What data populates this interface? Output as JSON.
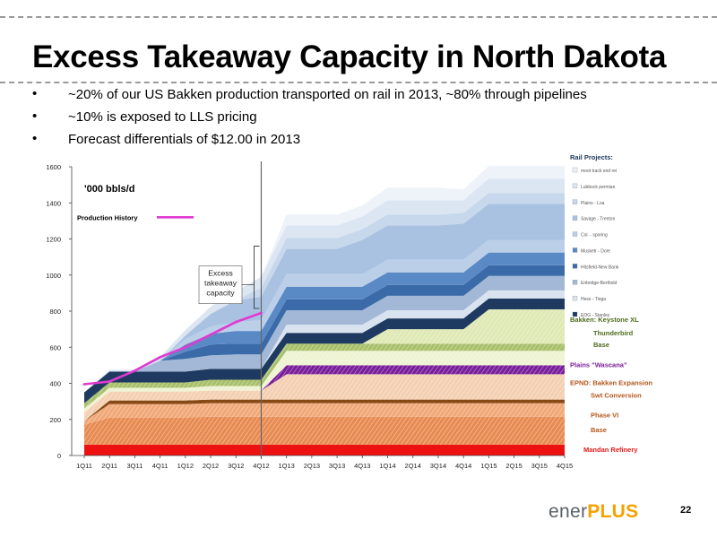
{
  "slide": {
    "title": "Excess Takeaway Capacity in North Dakota",
    "bullets": [
      "~20% of our US Bakken production transported on rail in 2013, ~80% through pipelines",
      "~10% is exposed to LLS pricing",
      "Forecast differentials of $12.00 in 2013"
    ],
    "page_number": "22",
    "logo": {
      "part1": "ener",
      "part2": "PLUS"
    }
  },
  "chart_data": {
    "type": "area",
    "title": "'000 bbls/d",
    "ylim": [
      0,
      1600
    ],
    "yticks": [
      0,
      200,
      400,
      600,
      800,
      1000,
      1200,
      1400,
      1600
    ],
    "categories": [
      "1Q11",
      "2Q11",
      "3Q11",
      "4Q11",
      "1Q12",
      "2Q12",
      "3Q12",
      "4Q12",
      "1Q13",
      "2Q13",
      "3Q13",
      "4Q13",
      "1Q14",
      "2Q14",
      "3Q14",
      "4Q14",
      "1Q15",
      "2Q15",
      "3Q15",
      "4Q15"
    ],
    "history_divider_after": "4Q12",
    "line_series": {
      "name": "Production History",
      "color": "#e03ad1",
      "values": [
        395,
        410,
        470,
        545,
        600,
        670,
        740,
        790
      ]
    },
    "annotation": {
      "lines": [
        "Excess",
        "takeaway",
        "capacity"
      ]
    },
    "rail_header": "Rail Projects:",
    "rail_legend": [
      {
        "name": "moot track end rei",
        "color": "#eef2f9"
      },
      {
        "name": "Lubbock permian",
        "color": "#dce6f2"
      },
      {
        "name": "Plains - Loa",
        "color": "#c7d8ec"
      },
      {
        "name": "Savage - Trenton",
        "color": "#a9c2e1"
      },
      {
        "name": "Col. - sporing",
        "color": "#bccfe8"
      },
      {
        "name": "Musketr - Dore",
        "color": "#5a8ac6"
      },
      {
        "name": "Hitsfield-New Bank",
        "color": "#3a6aa8"
      },
      {
        "name": "Enbridge-Berthold",
        "color": "#a2b8d6"
      },
      {
        "name": "Hess - Tioga",
        "color": "#d9e3f0"
      },
      {
        "name": "EOG - Stanley",
        "color": "#1f3a60"
      }
    ],
    "stack": [
      {
        "name": "Mandan Refinery",
        "color": "#ee1111",
        "values": [
          60,
          60,
          60,
          60,
          60,
          60,
          60,
          60,
          60,
          60,
          60,
          60,
          60,
          60,
          60,
          60,
          60,
          60,
          60,
          60
        ]
      },
      {
        "name": "Base",
        "color": "#e88b52",
        "values": [
          110,
          150,
          150,
          150,
          150,
          155,
          155,
          155,
          155,
          155,
          155,
          155,
          155,
          155,
          155,
          155,
          155,
          155,
          155,
          155
        ]
      },
      {
        "name": "Phase VI",
        "color": "#f0a878",
        "values": [
          20,
          75,
          75,
          75,
          75,
          75,
          75,
          75,
          75,
          75,
          75,
          75,
          75,
          75,
          75,
          75,
          75,
          75,
          75,
          75
        ]
      },
      {
        "name": "Swt Conversion",
        "color": "#8a4a16",
        "values": [
          0,
          20,
          20,
          20,
          20,
          20,
          20,
          20,
          20,
          20,
          20,
          20,
          20,
          20,
          20,
          20,
          20,
          20,
          20,
          20
        ]
      },
      {
        "name": "EPND: Bakken Expansion",
        "color": "#f4d0b2",
        "values": [
          50,
          50,
          50,
          50,
          50,
          50,
          50,
          50,
          140,
          140,
          140,
          140,
          140,
          140,
          140,
          140,
          140,
          140,
          140,
          140
        ]
      },
      {
        "name": "Plains \"Wascana\"",
        "color": "#7a1f9b",
        "values": [
          0,
          0,
          0,
          0,
          0,
          0,
          0,
          0,
          50,
          50,
          50,
          50,
          50,
          50,
          50,
          50,
          50,
          50,
          50,
          50
        ]
      },
      {
        "name": "Base",
        "color": "#eef3d2",
        "values": [
          20,
          20,
          20,
          20,
          20,
          25,
          25,
          25,
          80,
          80,
          80,
          80,
          80,
          80,
          80,
          80,
          80,
          80,
          80,
          80
        ]
      },
      {
        "name": "Thunderbird",
        "color": "#a8c06a",
        "values": [
          30,
          30,
          30,
          30,
          30,
          35,
          35,
          35,
          40,
          40,
          40,
          40,
          40,
          40,
          40,
          40,
          40,
          40,
          40,
          40
        ]
      },
      {
        "name": "Bakken Keystone XL",
        "color": "#dfe9b4",
        "values": [
          0,
          0,
          0,
          0,
          0,
          0,
          0,
          0,
          0,
          0,
          0,
          0,
          80,
          80,
          80,
          80,
          190,
          190,
          190,
          190
        ]
      },
      {
        "name": "EOG - Stanley",
        "color": "#1f3a60",
        "values": [
          60,
          60,
          60,
          60,
          60,
          60,
          60,
          60,
          60,
          60,
          60,
          60,
          60,
          60,
          60,
          60,
          60,
          60,
          60,
          60
        ]
      },
      {
        "name": "Hess - Tioga",
        "color": "#d9e3f0",
        "values": [
          0,
          0,
          0,
          0,
          0,
          0,
          0,
          0,
          45,
          45,
          45,
          45,
          45,
          45,
          45,
          45,
          45,
          45,
          45,
          45
        ]
      },
      {
        "name": "Enbridge-Berthold",
        "color": "#a2b8d6",
        "values": [
          0,
          0,
          0,
          60,
          70,
          75,
          80,
          80,
          80,
          80,
          80,
          80,
          80,
          80,
          80,
          80,
          80,
          80,
          80,
          80
        ]
      },
      {
        "name": "Hitsfield-New Bank",
        "color": "#3a6aa8",
        "values": [
          0,
          0,
          0,
          0,
          40,
          60,
          60,
          60,
          60,
          60,
          60,
          60,
          60,
          60,
          60,
          60,
          60,
          60,
          60,
          60
        ]
      },
      {
        "name": "Musketr - Dore",
        "color": "#5a8ac6",
        "values": [
          0,
          0,
          0,
          0,
          40,
          60,
          70,
          70,
          70,
          70,
          70,
          70,
          70,
          70,
          70,
          70,
          70,
          70,
          70,
          70
        ]
      },
      {
        "name": "Col. - sporing",
        "color": "#bccfe8",
        "values": [
          0,
          0,
          0,
          0,
          30,
          40,
          50,
          60,
          70,
          70,
          70,
          70,
          70,
          70,
          70,
          70,
          70,
          70,
          70,
          70
        ]
      },
      {
        "name": "Savage - Trenton",
        "color": "#a9c2e1",
        "values": [
          0,
          0,
          0,
          0,
          20,
          70,
          120,
          130,
          140,
          140,
          140,
          190,
          190,
          190,
          190,
          200,
          200,
          200,
          200,
          200
        ]
      },
      {
        "name": "Plains - Loa",
        "color": "#c7d8ec",
        "values": [
          0,
          0,
          0,
          0,
          0,
          0,
          0,
          50,
          60,
          60,
          60,
          60,
          60,
          60,
          60,
          60,
          60,
          60,
          60,
          60
        ]
      },
      {
        "name": "Lubbock permian",
        "color": "#dce6f2",
        "values": [
          0,
          10,
          10,
          20,
          30,
          40,
          50,
          60,
          70,
          70,
          70,
          70,
          80,
          80,
          80,
          70,
          80,
          80,
          80,
          80
        ]
      },
      {
        "name": "moot track end rei",
        "color": "#eef2f9",
        "values": [
          0,
          0,
          0,
          0,
          0,
          0,
          0,
          0,
          60,
          60,
          60,
          60,
          70,
          70,
          70,
          60,
          70,
          70,
          70,
          70
        ]
      }
    ],
    "right_labels": [
      {
        "text": "Bakken: Keystone XL",
        "color": "#4f6b1d",
        "y": 755
      },
      {
        "text": "Thunderbird",
        "color": "#4f6b1d",
        "y": 680
      },
      {
        "text": "Base",
        "color": "#4f6b1d",
        "y": 615
      },
      {
        "text": "Plains \"Wascana\"",
        "color": "#7a1f9b",
        "y": 505
      },
      {
        "text": "EPND: Bakken Expansion",
        "color": "#b5561b",
        "y": 405
      },
      {
        "text": "Swt Conversion",
        "color": "#b5561b",
        "y": 335
      },
      {
        "text": "Phase VI",
        "color": "#b5561b",
        "y": 225
      },
      {
        "text": "Base",
        "color": "#b5561b",
        "y": 145
      },
      {
        "text": "Mandan Refinery",
        "color": "#e41a1a",
        "y": 35
      }
    ]
  }
}
